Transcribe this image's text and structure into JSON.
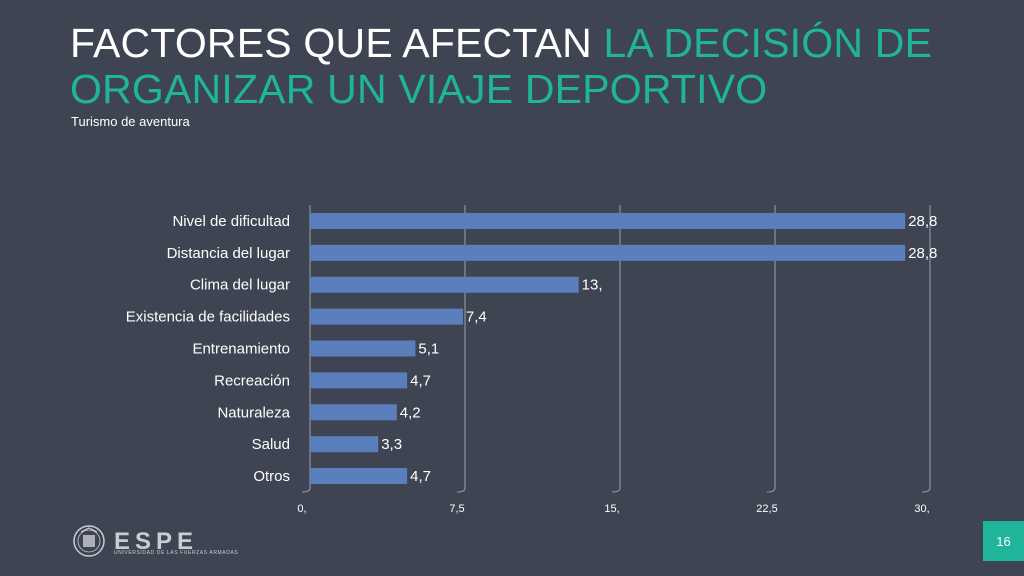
{
  "slide": {
    "title_white": "FACTORES QUE AFECTAN ",
    "title_accent": "LA DECISIÓN DE ORGANIZAR UN VIAJE DEPORTIVO",
    "subtitle": "Turismo de aventura",
    "page_number": "16",
    "logo_text": "ESPE",
    "logo_subtext": "UNIVERSIDAD DE LAS FUERZAS ARMADAS"
  },
  "colors": {
    "background": "#3f4452",
    "accent": "#1fb59a",
    "bar": "#5b7fbd",
    "grid": "#9aa0aa"
  },
  "chart_data": {
    "type": "bar",
    "orientation": "horizontal",
    "categories": [
      "Nivel de dificultad",
      "Distancia del lugar",
      "Clima del lugar",
      "Existencia de facilidades",
      "Entrenamiento",
      "Recreación",
      "Naturaleza",
      "Salud",
      "Otros"
    ],
    "values": [
      28.8,
      28.8,
      13,
      7.4,
      5.1,
      4.7,
      4.2,
      3.3,
      4.7
    ],
    "value_labels": [
      "28,8",
      "28,8",
      "13,",
      "7,4",
      "5,1",
      "4,7",
      "4,2",
      "3,3",
      "4,7"
    ],
    "xticks": [
      0,
      7.5,
      15,
      22.5,
      30
    ],
    "xtick_labels": [
      "0,",
      "7,5",
      "15,",
      "22,5",
      "30,"
    ],
    "xlim": [
      0,
      30
    ],
    "title": "",
    "xlabel": "",
    "ylabel": "",
    "grid": true
  }
}
